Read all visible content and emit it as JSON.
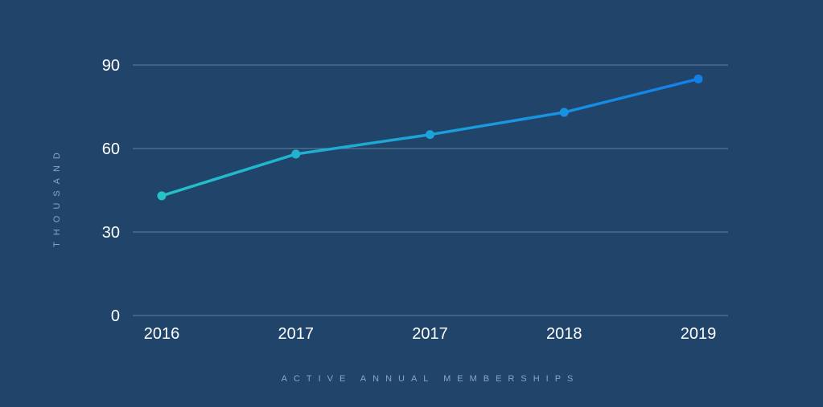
{
  "chart_data": {
    "type": "line",
    "categories": [
      "2016",
      "2017",
      "2017",
      "2018",
      "2019"
    ],
    "series": [
      {
        "values": [
          43,
          58,
          65,
          73,
          85
        ]
      }
    ],
    "title": "",
    "xlabel": "ACTIVE ANNUAL MEMBERSHIPS",
    "ylabel": "THOUSAND",
    "ylim": [
      0,
      90
    ],
    "yticks": [
      "0",
      "30",
      "60",
      "90"
    ],
    "grid": true,
    "legend": "none",
    "colors": {
      "background": "#20446a",
      "line_start": "#25c2c6",
      "line_end": "#1380ea",
      "grid": "#6482a2",
      "text": "#ffffff",
      "axis_title": "#8aa6c4"
    }
  }
}
